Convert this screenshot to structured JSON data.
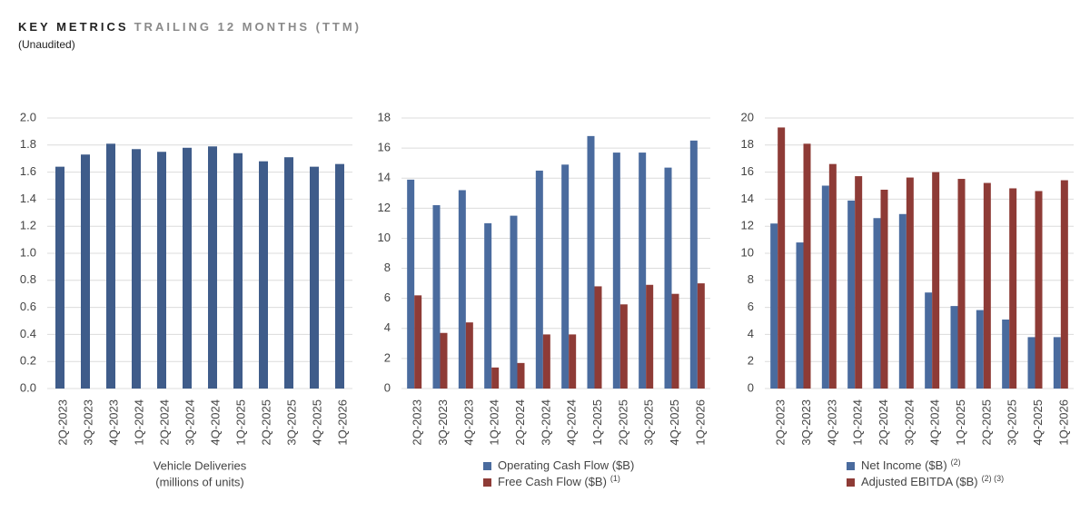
{
  "header": {
    "title": "KEY METRICS",
    "title_suffix": "TRAILING 12 MONTHS (TTM)",
    "subtitle": "(Unaudited)"
  },
  "chart_data": [
    {
      "type": "bar",
      "xlabel": [
        "Vehicle Deliveries",
        "(millions of units)"
      ],
      "categories": [
        "2Q-2023",
        "3Q-2023",
        "4Q-2023",
        "1Q-2024",
        "2Q-2024",
        "3Q-2024",
        "4Q-2024",
        "1Q-2025",
        "2Q-2025",
        "3Q-2025",
        "4Q-2025",
        "1Q-2026"
      ],
      "values": [
        1.64,
        1.73,
        1.81,
        1.77,
        1.75,
        1.78,
        1.79,
        1.74,
        1.68,
        1.71,
        1.64,
        1.66
      ],
      "color": "#3f5c8a",
      "ylim": [
        0,
        2
      ],
      "yticks": [
        {
          "value": 0,
          "label": "0.0"
        },
        0.2,
        0.4,
        0.6,
        0.8,
        {
          "value": 1,
          "label": "1.0"
        },
        1.2,
        1.4,
        1.6,
        1.8,
        {
          "value": 2,
          "label": "2.0"
        }
      ],
      "grid": true
    },
    {
      "type": "bar",
      "categories": [
        "2Q-2023",
        "3Q-2023",
        "4Q-2023",
        "1Q-2024",
        "2Q-2024",
        "3Q-2024",
        "4Q-2024",
        "1Q-2025",
        "2Q-2025",
        "3Q-2025",
        "4Q-2025",
        "1Q-2026"
      ],
      "series": [
        {
          "name": "Operating Cash Flow ($B)",
          "color": "#4a6b9e",
          "values": [
            13.9,
            12.2,
            13.2,
            11.0,
            11.5,
            14.5,
            14.9,
            16.8,
            15.7,
            15.7,
            14.7,
            16.5
          ]
        },
        {
          "name": "Free Cash Flow ($B)",
          "note": "(1)",
          "color": "#8e3b36",
          "values": [
            6.2,
            3.7,
            4.4,
            1.4,
            1.7,
            3.6,
            3.6,
            6.8,
            5.6,
            6.9,
            6.3,
            7.0
          ]
        }
      ],
      "ylim": [
        0,
        18
      ],
      "yticks": [
        0,
        2,
        4,
        6,
        8,
        10,
        12,
        14,
        16,
        18
      ],
      "grid": true
    },
    {
      "type": "bar",
      "categories": [
        "2Q-2023",
        "3Q-2023",
        "4Q-2023",
        "1Q-2024",
        "2Q-2024",
        "3Q-2024",
        "4Q-2024",
        "1Q-2025",
        "2Q-2025",
        "3Q-2025",
        "4Q-2025",
        "1Q-2026"
      ],
      "series": [
        {
          "name": "Net Income ($B)",
          "note": "(2)",
          "color": "#4a6b9e",
          "values": [
            12.2,
            10.8,
            15.0,
            13.9,
            12.6,
            12.9,
            7.1,
            6.1,
            5.8,
            5.1,
            3.8,
            3.8
          ]
        },
        {
          "name": "Adjusted EBITDA ($B)",
          "note": "(2) (3)",
          "color": "#8e3b36",
          "values": [
            19.3,
            18.1,
            16.6,
            15.7,
            14.7,
            15.6,
            16.0,
            15.5,
            15.2,
            14.8,
            14.6,
            15.4
          ]
        }
      ],
      "ylim": [
        0,
        20
      ],
      "yticks": [
        0,
        2,
        4,
        6,
        8,
        10,
        12,
        14,
        16,
        18,
        20
      ],
      "grid": true
    }
  ]
}
